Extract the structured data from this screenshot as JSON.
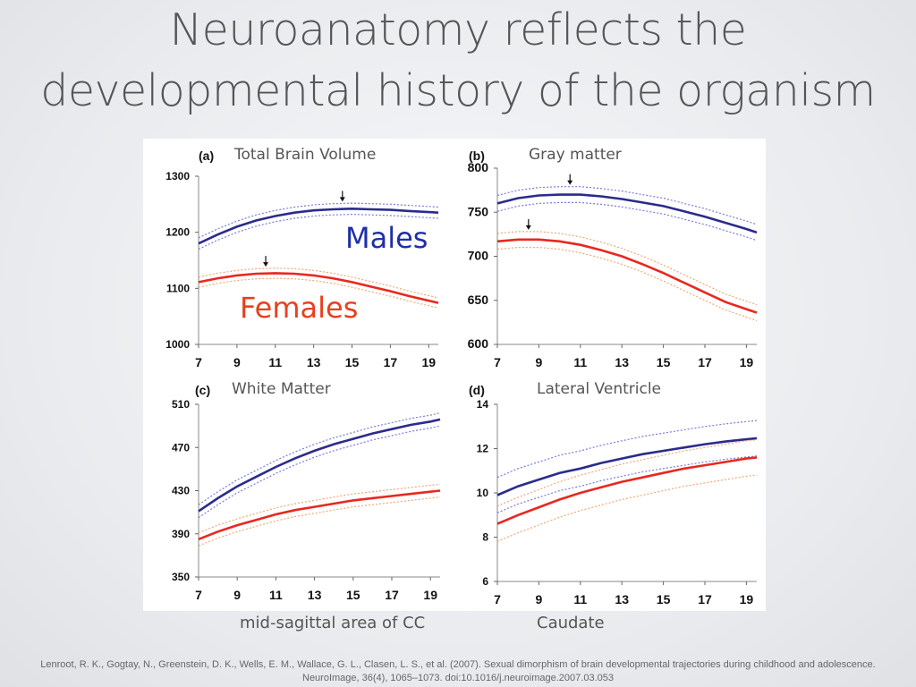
{
  "slide": {
    "title_line1": "Neuroanatomy reflects the",
    "title_line2": "developmental history of the organism",
    "caption_left": "mid-sagittal area of CC",
    "caption_right": "Caudate",
    "citation_line1": "Lenroot, R. K., Gogtay, N., Greenstein, D. K., Wells, E. M., Wallace, G. L., Clasen, L. S., et al. (2007). Sexual dimorphism of brain developmental trajectories during childhood and adolescence.",
    "citation_line2": "NeuroImage, 36(4), 1065–1073. doi:10.1016/j.neuroimage.2007.03.053"
  },
  "colors": {
    "males": "#2b2b8c",
    "males_ci": "#7b7be0",
    "females": "#e8281e",
    "females_ci": "#f0a878",
    "male_label": "#1f2fa8",
    "female_label": "#e8401e"
  },
  "chart_data": [
    {
      "type": "line",
      "panel_letter": "(a)",
      "title": "Total Brain Volume",
      "xlim": [
        7,
        19.5
      ],
      "xticks": [
        7,
        9,
        11,
        13,
        15,
        17,
        19
      ],
      "ylim": [
        1000,
        1300
      ],
      "yticks": [
        1000,
        1100,
        1200,
        1300
      ],
      "x": [
        7,
        8,
        9,
        10,
        11,
        12,
        13,
        14,
        15,
        16,
        17,
        18,
        19,
        19.5
      ],
      "annotations": [
        {
          "text": "Males",
          "color_key": "male_label"
        },
        {
          "text": "Females",
          "color_key": "female_label"
        }
      ],
      "peaks": [
        14.5,
        10.5
      ],
      "series": [
        {
          "name": "Males",
          "color_key": "males",
          "ci_color_key": "males_ci",
          "values": [
            1180,
            1196,
            1210,
            1221,
            1229,
            1235,
            1239,
            1241,
            1242,
            1241,
            1240,
            1238,
            1236,
            1235
          ],
          "ci": 10
        },
        {
          "name": "Females",
          "color_key": "females",
          "ci_color_key": "females_ci",
          "values": [
            1111,
            1118,
            1123,
            1126,
            1127,
            1126,
            1123,
            1118,
            1111,
            1103,
            1095,
            1086,
            1078,
            1074
          ],
          "ci": 9
        }
      ]
    },
    {
      "type": "line",
      "panel_letter": "(b)",
      "title": "Gray matter",
      "xlim": [
        7,
        19.5
      ],
      "xticks": [
        7,
        9,
        11,
        13,
        15,
        17,
        19
      ],
      "ylim": [
        600,
        800
      ],
      "yticks": [
        600,
        650,
        700,
        750,
        800
      ],
      "x": [
        7,
        8,
        9,
        10,
        11,
        12,
        13,
        14,
        15,
        16,
        17,
        18,
        19,
        19.5
      ],
      "peaks": [
        10.5,
        8.5
      ],
      "series": [
        {
          "name": "Males",
          "color_key": "males",
          "ci_color_key": "males_ci",
          "values": [
            760,
            766,
            769,
            770,
            770,
            768,
            765,
            761,
            757,
            751,
            745,
            738,
            731,
            727
          ],
          "ci": 9
        },
        {
          "name": "Females",
          "color_key": "females",
          "ci_color_key": "females_ci",
          "values": [
            717,
            719,
            719,
            717,
            713,
            707,
            700,
            691,
            681,
            670,
            659,
            648,
            640,
            636
          ],
          "ci": 9
        }
      ]
    },
    {
      "type": "line",
      "panel_letter": "(c)",
      "title": "White Matter",
      "xlim": [
        7,
        19.5
      ],
      "xticks": [
        7,
        9,
        11,
        13,
        15,
        17,
        19
      ],
      "ylim": [
        350,
        510
      ],
      "yticks": [
        350,
        390,
        430,
        470,
        510
      ],
      "x": [
        7,
        8,
        9,
        10,
        11,
        12,
        13,
        14,
        15,
        16,
        17,
        18,
        19,
        19.5
      ],
      "series": [
        {
          "name": "Males",
          "color_key": "males",
          "ci_color_key": "males_ci",
          "values": [
            411,
            423,
            434,
            443,
            452,
            460,
            467,
            473,
            478,
            483,
            487,
            491,
            494,
            496
          ],
          "ci": 6
        },
        {
          "name": "Females",
          "color_key": "females",
          "ci_color_key": "females_ci",
          "values": [
            385,
            392,
            398,
            403,
            408,
            412,
            415,
            418,
            421,
            423,
            425,
            427,
            429,
            430
          ],
          "ci": 6
        }
      ]
    },
    {
      "type": "line",
      "panel_letter": "(d)",
      "title": "Lateral Ventricle",
      "xlim": [
        7,
        19.5
      ],
      "xticks": [
        7,
        9,
        11,
        13,
        15,
        17,
        19
      ],
      "ylim": [
        6,
        14
      ],
      "yticks": [
        6,
        8,
        10,
        12,
        14
      ],
      "x": [
        7,
        8,
        9,
        10,
        11,
        12,
        13,
        14,
        15,
        16,
        17,
        18,
        19,
        19.5
      ],
      "series": [
        {
          "name": "Males",
          "color_key": "males",
          "ci_color_key": "males_ci",
          "values": [
            9.9,
            10.3,
            10.6,
            10.9,
            11.1,
            11.35,
            11.55,
            11.75,
            11.9,
            12.05,
            12.2,
            12.32,
            12.42,
            12.47
          ],
          "ci": 0.8
        },
        {
          "name": "Females",
          "color_key": "females",
          "ci_color_key": "females_ci",
          "values": [
            8.6,
            9.0,
            9.35,
            9.7,
            10.0,
            10.25,
            10.5,
            10.7,
            10.9,
            11.1,
            11.25,
            11.4,
            11.55,
            11.6
          ],
          "ci": 0.8
        }
      ]
    }
  ]
}
